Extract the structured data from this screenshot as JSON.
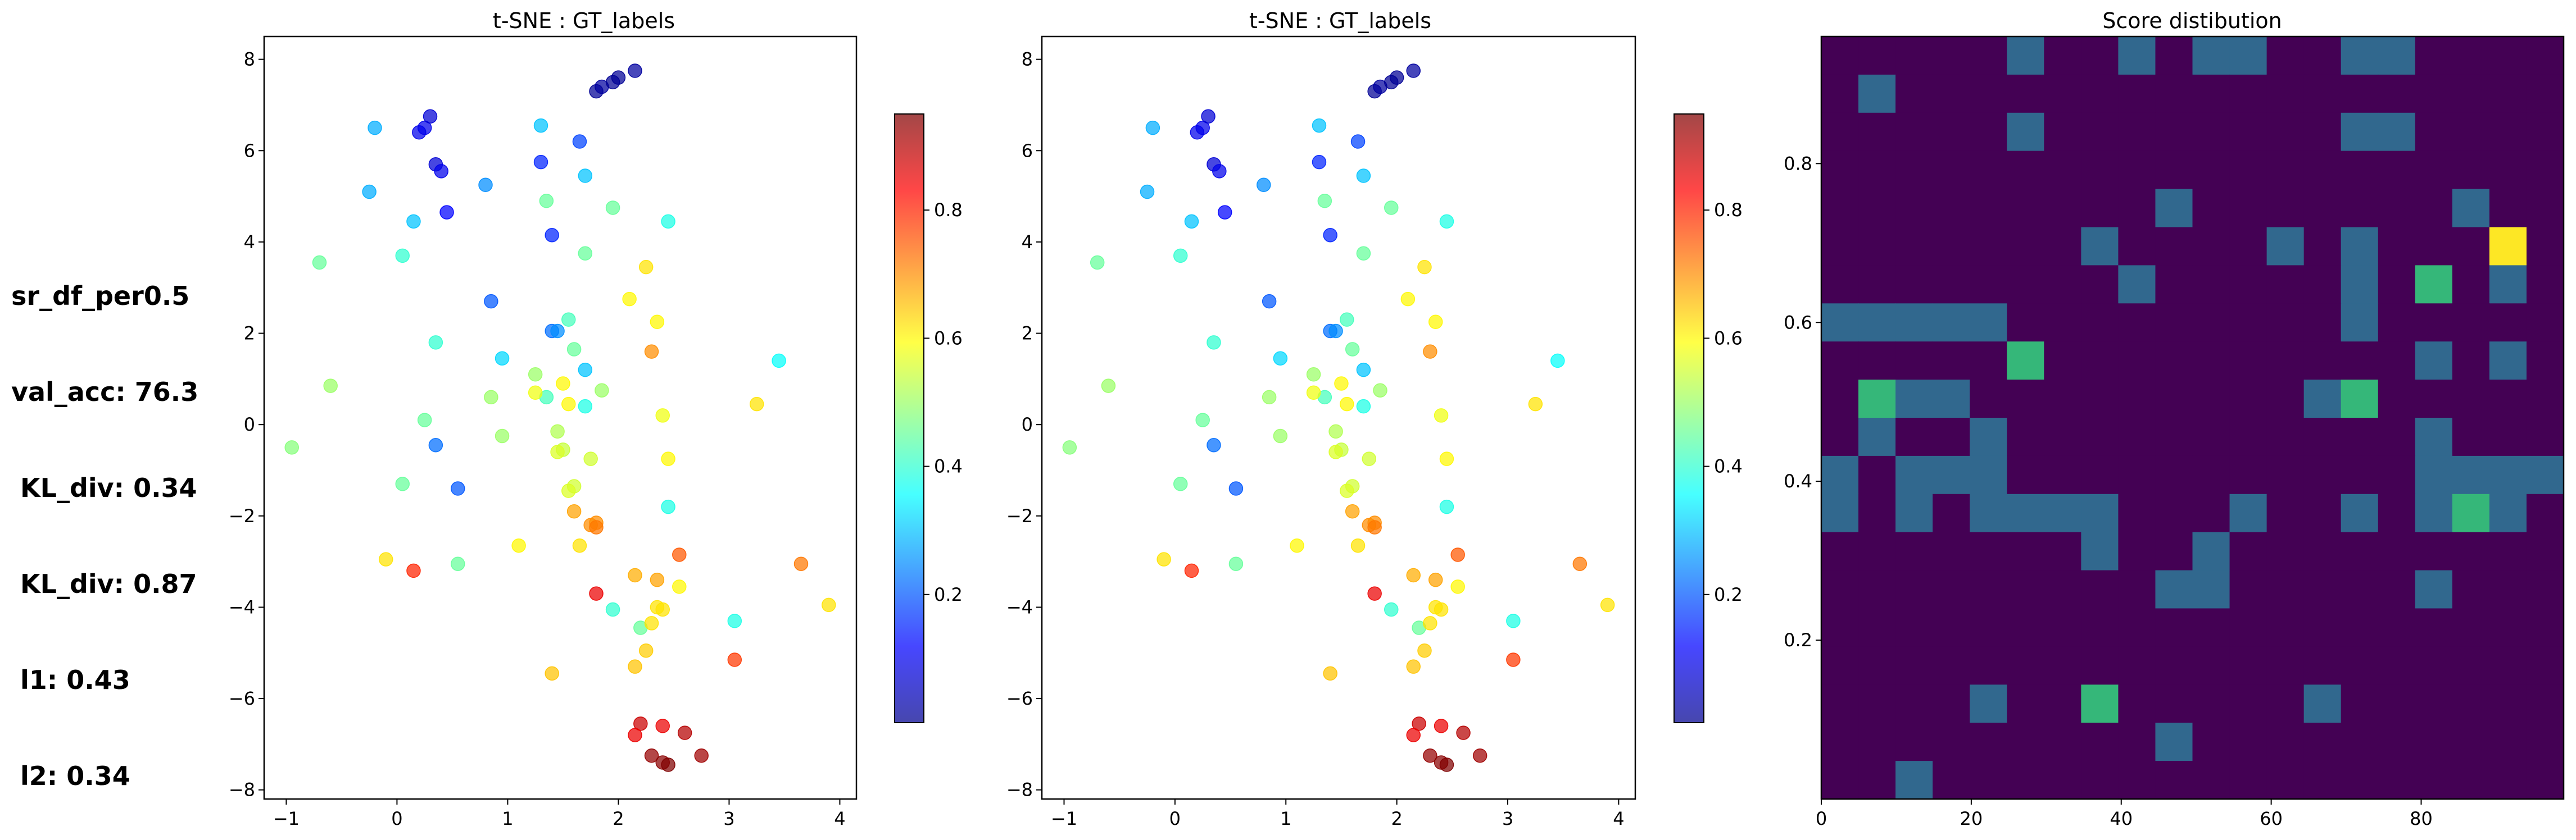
{
  "stats": [
    "sr_df_per0.5",
    "val_acc: 76.3",
    " KL_div: 0.34",
    " KL_div: 0.87",
    " l1: 0.43",
    " l2: 0.34"
  ],
  "colors": {
    "heat_low": "#440154",
    "heat_mid": "#31688e",
    "heat_green": "#35b779",
    "heat_high": "#fde725"
  },
  "chart_data": [
    {
      "type": "scatter",
      "title": "t-SNE : GT_labels",
      "xlim": [
        -1.2,
        4.15
      ],
      "ylim": [
        -8.2,
        8.5
      ],
      "xticks": [
        -1,
        0,
        1,
        2,
        3,
        4
      ],
      "yticks": [
        -8,
        -6,
        -4,
        -2,
        0,
        2,
        4,
        6,
        8
      ],
      "colormap": "jet",
      "colorbar": {
        "range": [
          0.0,
          0.95
        ],
        "ticks": [
          0.2,
          0.4,
          0.6,
          0.8
        ]
      },
      "points": [
        [
          1.8,
          7.3,
          0.02
        ],
        [
          1.85,
          7.4,
          0.03
        ],
        [
          1.95,
          7.5,
          0.02
        ],
        [
          2.0,
          7.6,
          0.02
        ],
        [
          2.15,
          7.75,
          0.03
        ],
        [
          0.2,
          6.4,
          0.1
        ],
        [
          0.25,
          6.5,
          0.1
        ],
        [
          0.3,
          6.75,
          0.08
        ],
        [
          0.35,
          5.7,
          0.08
        ],
        [
          0.4,
          5.55,
          0.1
        ],
        [
          0.45,
          4.65,
          0.12
        ],
        [
          1.3,
          5.75,
          0.15
        ],
        [
          1.4,
          4.15,
          0.15
        ],
        [
          1.65,
          6.2,
          0.18
        ],
        [
          0.85,
          2.7,
          0.2
        ],
        [
          0.55,
          -1.4,
          0.2
        ],
        [
          0.35,
          -0.45,
          0.22
        ],
        [
          1.4,
          2.05,
          0.22
        ],
        [
          1.45,
          2.05,
          0.25
        ],
        [
          -0.2,
          6.5,
          0.28
        ],
        [
          -0.25,
          5.1,
          0.28
        ],
        [
          0.8,
          5.25,
          0.25
        ],
        [
          1.3,
          6.55,
          0.3
        ],
        [
          1.7,
          5.45,
          0.3
        ],
        [
          0.15,
          4.45,
          0.3
        ],
        [
          0.95,
          1.45,
          0.32
        ],
        [
          1.7,
          1.2,
          0.3
        ],
        [
          2.45,
          4.45,
          0.38
        ],
        [
          3.45,
          1.4,
          0.36
        ],
        [
          3.05,
          -4.3,
          0.38
        ],
        [
          2.45,
          -1.8,
          0.38
        ],
        [
          1.95,
          -4.05,
          0.4
        ],
        [
          1.7,
          0.4,
          0.38
        ],
        [
          1.55,
          2.3,
          0.42
        ],
        [
          0.05,
          3.7,
          0.4
        ],
        [
          0.35,
          1.8,
          0.4
        ],
        [
          1.35,
          4.9,
          0.45
        ],
        [
          1.7,
          3.75,
          0.45
        ],
        [
          1.95,
          4.75,
          0.45
        ],
        [
          1.35,
          0.6,
          0.42
        ],
        [
          1.6,
          1.65,
          0.45
        ],
        [
          1.85,
          0.75,
          0.5
        ],
        [
          2.2,
          -4.45,
          0.45
        ],
        [
          0.05,
          -1.3,
          0.45
        ],
        [
          0.25,
          0.1,
          0.45
        ],
        [
          -0.7,
          3.55,
          0.45
        ],
        [
          -0.95,
          -0.5,
          0.48
        ],
        [
          -0.6,
          0.85,
          0.5
        ],
        [
          0.55,
          -3.05,
          0.45
        ],
        [
          1.25,
          1.1,
          0.5
        ],
        [
          0.85,
          0.6,
          0.5
        ],
        [
          0.95,
          -0.25,
          0.5
        ],
        [
          1.45,
          -0.15,
          0.52
        ],
        [
          1.5,
          -0.55,
          0.54
        ],
        [
          1.45,
          -0.6,
          0.56
        ],
        [
          1.6,
          -1.35,
          0.55
        ],
        [
          1.55,
          -1.45,
          0.56
        ],
        [
          1.75,
          -0.75,
          0.55
        ],
        [
          1.25,
          0.7,
          0.58
        ],
        [
          1.5,
          0.9,
          0.6
        ],
        [
          1.55,
          0.45,
          0.6
        ],
        [
          2.1,
          2.75,
          0.6
        ],
        [
          2.25,
          3.45,
          0.62
        ],
        [
          2.35,
          2.25,
          0.6
        ],
        [
          2.4,
          0.2,
          0.58
        ],
        [
          2.45,
          -0.75,
          0.6
        ],
        [
          2.35,
          -4.0,
          0.62
        ],
        [
          2.4,
          -4.05,
          0.62
        ],
        [
          2.55,
          -3.55,
          0.6
        ],
        [
          2.3,
          -4.35,
          0.62
        ],
        [
          2.25,
          -4.95,
          0.64
        ],
        [
          2.15,
          -5.3,
          0.65
        ],
        [
          1.4,
          -5.45,
          0.65
        ],
        [
          1.1,
          -2.65,
          0.6
        ],
        [
          1.65,
          -2.65,
          0.62
        ],
        [
          -0.1,
          -2.95,
          0.62
        ],
        [
          2.15,
          -3.3,
          0.67
        ],
        [
          2.35,
          -3.4,
          0.68
        ],
        [
          3.25,
          0.45,
          0.62
        ],
        [
          3.9,
          -3.95,
          0.62
        ],
        [
          1.6,
          -1.9,
          0.68
        ],
        [
          1.75,
          -2.2,
          0.7
        ],
        [
          1.8,
          -2.15,
          0.7
        ],
        [
          1.8,
          -2.25,
          0.72
        ],
        [
          2.3,
          1.6,
          0.7
        ],
        [
          2.55,
          -2.85,
          0.75
        ],
        [
          3.65,
          -3.05,
          0.72
        ],
        [
          3.05,
          -5.15,
          0.78
        ],
        [
          0.15,
          -3.2,
          0.8
        ],
        [
          1.8,
          -3.7,
          0.85
        ],
        [
          2.2,
          -6.55,
          0.88
        ],
        [
          2.15,
          -6.8,
          0.85
        ],
        [
          2.4,
          -6.6,
          0.85
        ],
        [
          2.6,
          -6.75,
          0.9
        ],
        [
          2.3,
          -7.25,
          0.93
        ],
        [
          2.4,
          -7.4,
          0.94
        ],
        [
          2.45,
          -7.45,
          0.95
        ],
        [
          2.75,
          -7.25,
          0.92
        ]
      ]
    },
    {
      "type": "scatter",
      "title": "t-SNE : GT_labels",
      "xlim": [
        -1.2,
        4.15
      ],
      "ylim": [
        -8.2,
        8.5
      ],
      "xticks": [
        -1,
        0,
        1,
        2,
        3,
        4
      ],
      "yticks": [
        -8,
        -6,
        -4,
        -2,
        0,
        2,
        4,
        6,
        8
      ],
      "colormap": "jet",
      "colorbar": {
        "range": [
          0.0,
          0.95
        ],
        "ticks": [
          0.2,
          0.4,
          0.6,
          0.8
        ]
      },
      "points": [
        [
          1.8,
          7.3,
          0.02
        ],
        [
          1.85,
          7.4,
          0.03
        ],
        [
          1.95,
          7.5,
          0.02
        ],
        [
          2.0,
          7.6,
          0.02
        ],
        [
          2.15,
          7.75,
          0.03
        ],
        [
          0.2,
          6.4,
          0.1
        ],
        [
          0.25,
          6.5,
          0.1
        ],
        [
          0.3,
          6.75,
          0.08
        ],
        [
          0.35,
          5.7,
          0.08
        ],
        [
          0.4,
          5.55,
          0.1
        ],
        [
          0.45,
          4.65,
          0.12
        ],
        [
          1.3,
          5.75,
          0.15
        ],
        [
          1.4,
          4.15,
          0.15
        ],
        [
          1.65,
          6.2,
          0.18
        ],
        [
          0.85,
          2.7,
          0.2
        ],
        [
          0.55,
          -1.4,
          0.2
        ],
        [
          0.35,
          -0.45,
          0.22
        ],
        [
          1.4,
          2.05,
          0.22
        ],
        [
          1.45,
          2.05,
          0.25
        ],
        [
          -0.2,
          6.5,
          0.28
        ],
        [
          -0.25,
          5.1,
          0.28
        ],
        [
          0.8,
          5.25,
          0.25
        ],
        [
          1.3,
          6.55,
          0.3
        ],
        [
          1.7,
          5.45,
          0.3
        ],
        [
          0.15,
          4.45,
          0.3
        ],
        [
          0.95,
          1.45,
          0.32
        ],
        [
          1.7,
          1.2,
          0.3
        ],
        [
          2.45,
          4.45,
          0.38
        ],
        [
          3.45,
          1.4,
          0.36
        ],
        [
          3.05,
          -4.3,
          0.38
        ],
        [
          2.45,
          -1.8,
          0.38
        ],
        [
          1.95,
          -4.05,
          0.4
        ],
        [
          1.7,
          0.4,
          0.38
        ],
        [
          1.55,
          2.3,
          0.42
        ],
        [
          0.05,
          3.7,
          0.4
        ],
        [
          0.35,
          1.8,
          0.4
        ],
        [
          1.35,
          4.9,
          0.45
        ],
        [
          1.7,
          3.75,
          0.45
        ],
        [
          1.95,
          4.75,
          0.45
        ],
        [
          1.35,
          0.6,
          0.42
        ],
        [
          1.6,
          1.65,
          0.45
        ],
        [
          1.85,
          0.75,
          0.5
        ],
        [
          2.2,
          -4.45,
          0.45
        ],
        [
          0.05,
          -1.3,
          0.45
        ],
        [
          0.25,
          0.1,
          0.45
        ],
        [
          -0.7,
          3.55,
          0.45
        ],
        [
          -0.95,
          -0.5,
          0.48
        ],
        [
          -0.6,
          0.85,
          0.5
        ],
        [
          0.55,
          -3.05,
          0.45
        ],
        [
          1.25,
          1.1,
          0.5
        ],
        [
          0.85,
          0.6,
          0.5
        ],
        [
          0.95,
          -0.25,
          0.5
        ],
        [
          1.45,
          -0.15,
          0.52
        ],
        [
          1.5,
          -0.55,
          0.54
        ],
        [
          1.45,
          -0.6,
          0.56
        ],
        [
          1.6,
          -1.35,
          0.55
        ],
        [
          1.55,
          -1.45,
          0.56
        ],
        [
          1.75,
          -0.75,
          0.55
        ],
        [
          1.25,
          0.7,
          0.58
        ],
        [
          1.5,
          0.9,
          0.6
        ],
        [
          1.55,
          0.45,
          0.6
        ],
        [
          2.1,
          2.75,
          0.6
        ],
        [
          2.25,
          3.45,
          0.62
        ],
        [
          2.35,
          2.25,
          0.6
        ],
        [
          2.4,
          0.2,
          0.58
        ],
        [
          2.45,
          -0.75,
          0.6
        ],
        [
          2.35,
          -4.0,
          0.62
        ],
        [
          2.4,
          -4.05,
          0.62
        ],
        [
          2.55,
          -3.55,
          0.6
        ],
        [
          2.3,
          -4.35,
          0.62
        ],
        [
          2.25,
          -4.95,
          0.64
        ],
        [
          2.15,
          -5.3,
          0.65
        ],
        [
          1.4,
          -5.45,
          0.65
        ],
        [
          1.1,
          -2.65,
          0.6
        ],
        [
          1.65,
          -2.65,
          0.62
        ],
        [
          -0.1,
          -2.95,
          0.62
        ],
        [
          2.15,
          -3.3,
          0.67
        ],
        [
          2.35,
          -3.4,
          0.68
        ],
        [
          3.25,
          0.45,
          0.62
        ],
        [
          3.9,
          -3.95,
          0.62
        ],
        [
          1.6,
          -1.9,
          0.68
        ],
        [
          1.75,
          -2.2,
          0.7
        ],
        [
          1.8,
          -2.15,
          0.7
        ],
        [
          1.8,
          -2.25,
          0.72
        ],
        [
          2.3,
          1.6,
          0.7
        ],
        [
          2.55,
          -2.85,
          0.75
        ],
        [
          3.65,
          -3.05,
          0.72
        ],
        [
          3.05,
          -5.15,
          0.78
        ],
        [
          0.15,
          -3.2,
          0.8
        ],
        [
          1.8,
          -3.7,
          0.85
        ],
        [
          2.2,
          -6.55,
          0.88
        ],
        [
          2.15,
          -6.8,
          0.85
        ],
        [
          2.4,
          -6.6,
          0.85
        ],
        [
          2.6,
          -6.75,
          0.9
        ],
        [
          2.3,
          -7.25,
          0.93
        ],
        [
          2.4,
          -7.4,
          0.94
        ],
        [
          2.45,
          -7.45,
          0.95
        ],
        [
          2.75,
          -7.25,
          0.92
        ]
      ]
    },
    {
      "type": "heatmap",
      "title": "Score distibution",
      "xlim": [
        0,
        99
      ],
      "ylim": [
        0,
        0.96
      ],
      "xticks": [
        0,
        20,
        40,
        60,
        80
      ],
      "yticks": [
        0.2,
        0.4,
        0.6,
        0.8
      ],
      "grid_cols": 20,
      "grid_rows": 20,
      "levels": [
        0,
        1,
        2,
        3
      ],
      "rows_top_to_bottom": [
        "00000100101100110000",
        "01000000000000000000",
        "00000100000000110000",
        "00000000000000000000",
        "00000000010000000100",
        "00000001000010100030",
        "00000000100000102010",
        "11111000000000100000",
        "00000200000000001010",
        "02110000000001200000",
        "01001000000000001000",
        "10111000000000001111",
        "10101111000100101210",
        "00000001001000000000",
        "00000000011000001000",
        "00000000000000000000",
        "00000000000000000000",
        "00001002000001000000",
        "00000000010000000000",
        "00100000000000000000"
      ]
    }
  ]
}
